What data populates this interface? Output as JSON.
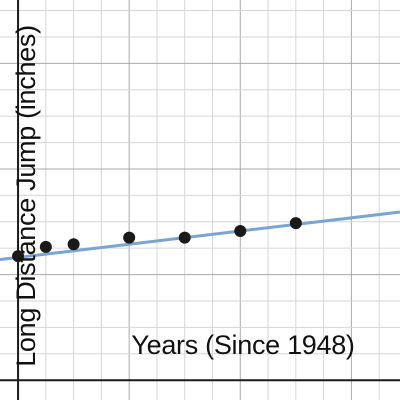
{
  "chart_data": {
    "type": "scatter",
    "xlabel": "Years (Since 1948)",
    "ylabel": "Long Distance Jump (inches)",
    "xlim": [
      -1.3,
      27.5
    ],
    "ylim": [
      -1.5,
      28.8
    ],
    "grid": true,
    "x_tick_step": 2,
    "major_every": 4,
    "points": [
      {
        "x": 0,
        "y": 9.4
      },
      {
        "x": 2,
        "y": 10.1
      },
      {
        "x": 4,
        "y": 10.3
      },
      {
        "x": 8,
        "y": 10.8
      },
      {
        "x": 12,
        "y": 10.8
      },
      {
        "x": 16,
        "y": 11.3
      },
      {
        "x": 20,
        "y": 11.9
      }
    ],
    "trendline": {
      "slope": 0.125,
      "intercept": 9.3
    },
    "colors": {
      "points": "#1a1a1a",
      "trendline": "#7aa5d2"
    }
  }
}
